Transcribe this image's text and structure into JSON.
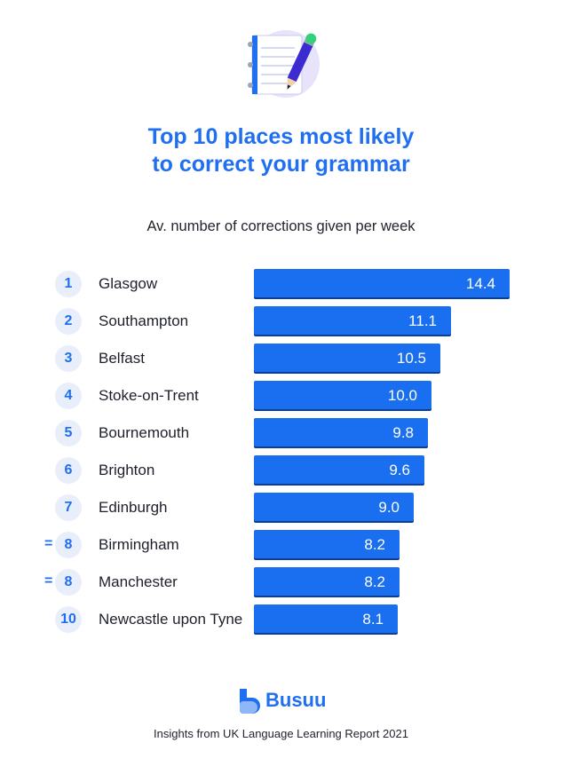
{
  "title_line1": "Top 10 places most likely",
  "title_line2": "to correct your grammar",
  "subtitle": "Av. number of corrections given per week",
  "brand": "Busuu",
  "footer": "Insights from UK Language Learning Report 2021",
  "illustration_icon": "notebook-pencil-icon",
  "colors": {
    "accent": "#1f6ff0",
    "bar": "#1a6ff0",
    "rank_bg": "#e9eefb"
  },
  "chart_data": {
    "type": "bar",
    "orientation": "horizontal",
    "title": "Top 10 places most likely to correct your grammar",
    "subtitle": "Av. number of corrections given per week",
    "categories": [
      "Glasgow",
      "Southampton",
      "Belfast",
      "Stoke-on-Trent",
      "Bournemouth",
      "Brighton",
      "Edinburgh",
      "Birmingham",
      "Manchester",
      "Newcastle upon Tyne"
    ],
    "ranks": [
      "1",
      "2",
      "3",
      "4",
      "5",
      "6",
      "7",
      "8",
      "8",
      "10"
    ],
    "tied": [
      false,
      false,
      false,
      false,
      false,
      false,
      false,
      true,
      true,
      false
    ],
    "tie_marker": "=",
    "values": [
      14.4,
      11.1,
      10.5,
      10.0,
      9.8,
      9.6,
      9.0,
      8.2,
      8.2,
      8.1
    ],
    "value_labels": [
      "14.4",
      "11.1",
      "10.5",
      "10.0",
      "9.8",
      "9.6",
      "9.0",
      "8.2",
      "8.2",
      "8.1"
    ],
    "xlim": [
      0,
      14.4
    ],
    "grid": false,
    "legend": "none"
  }
}
